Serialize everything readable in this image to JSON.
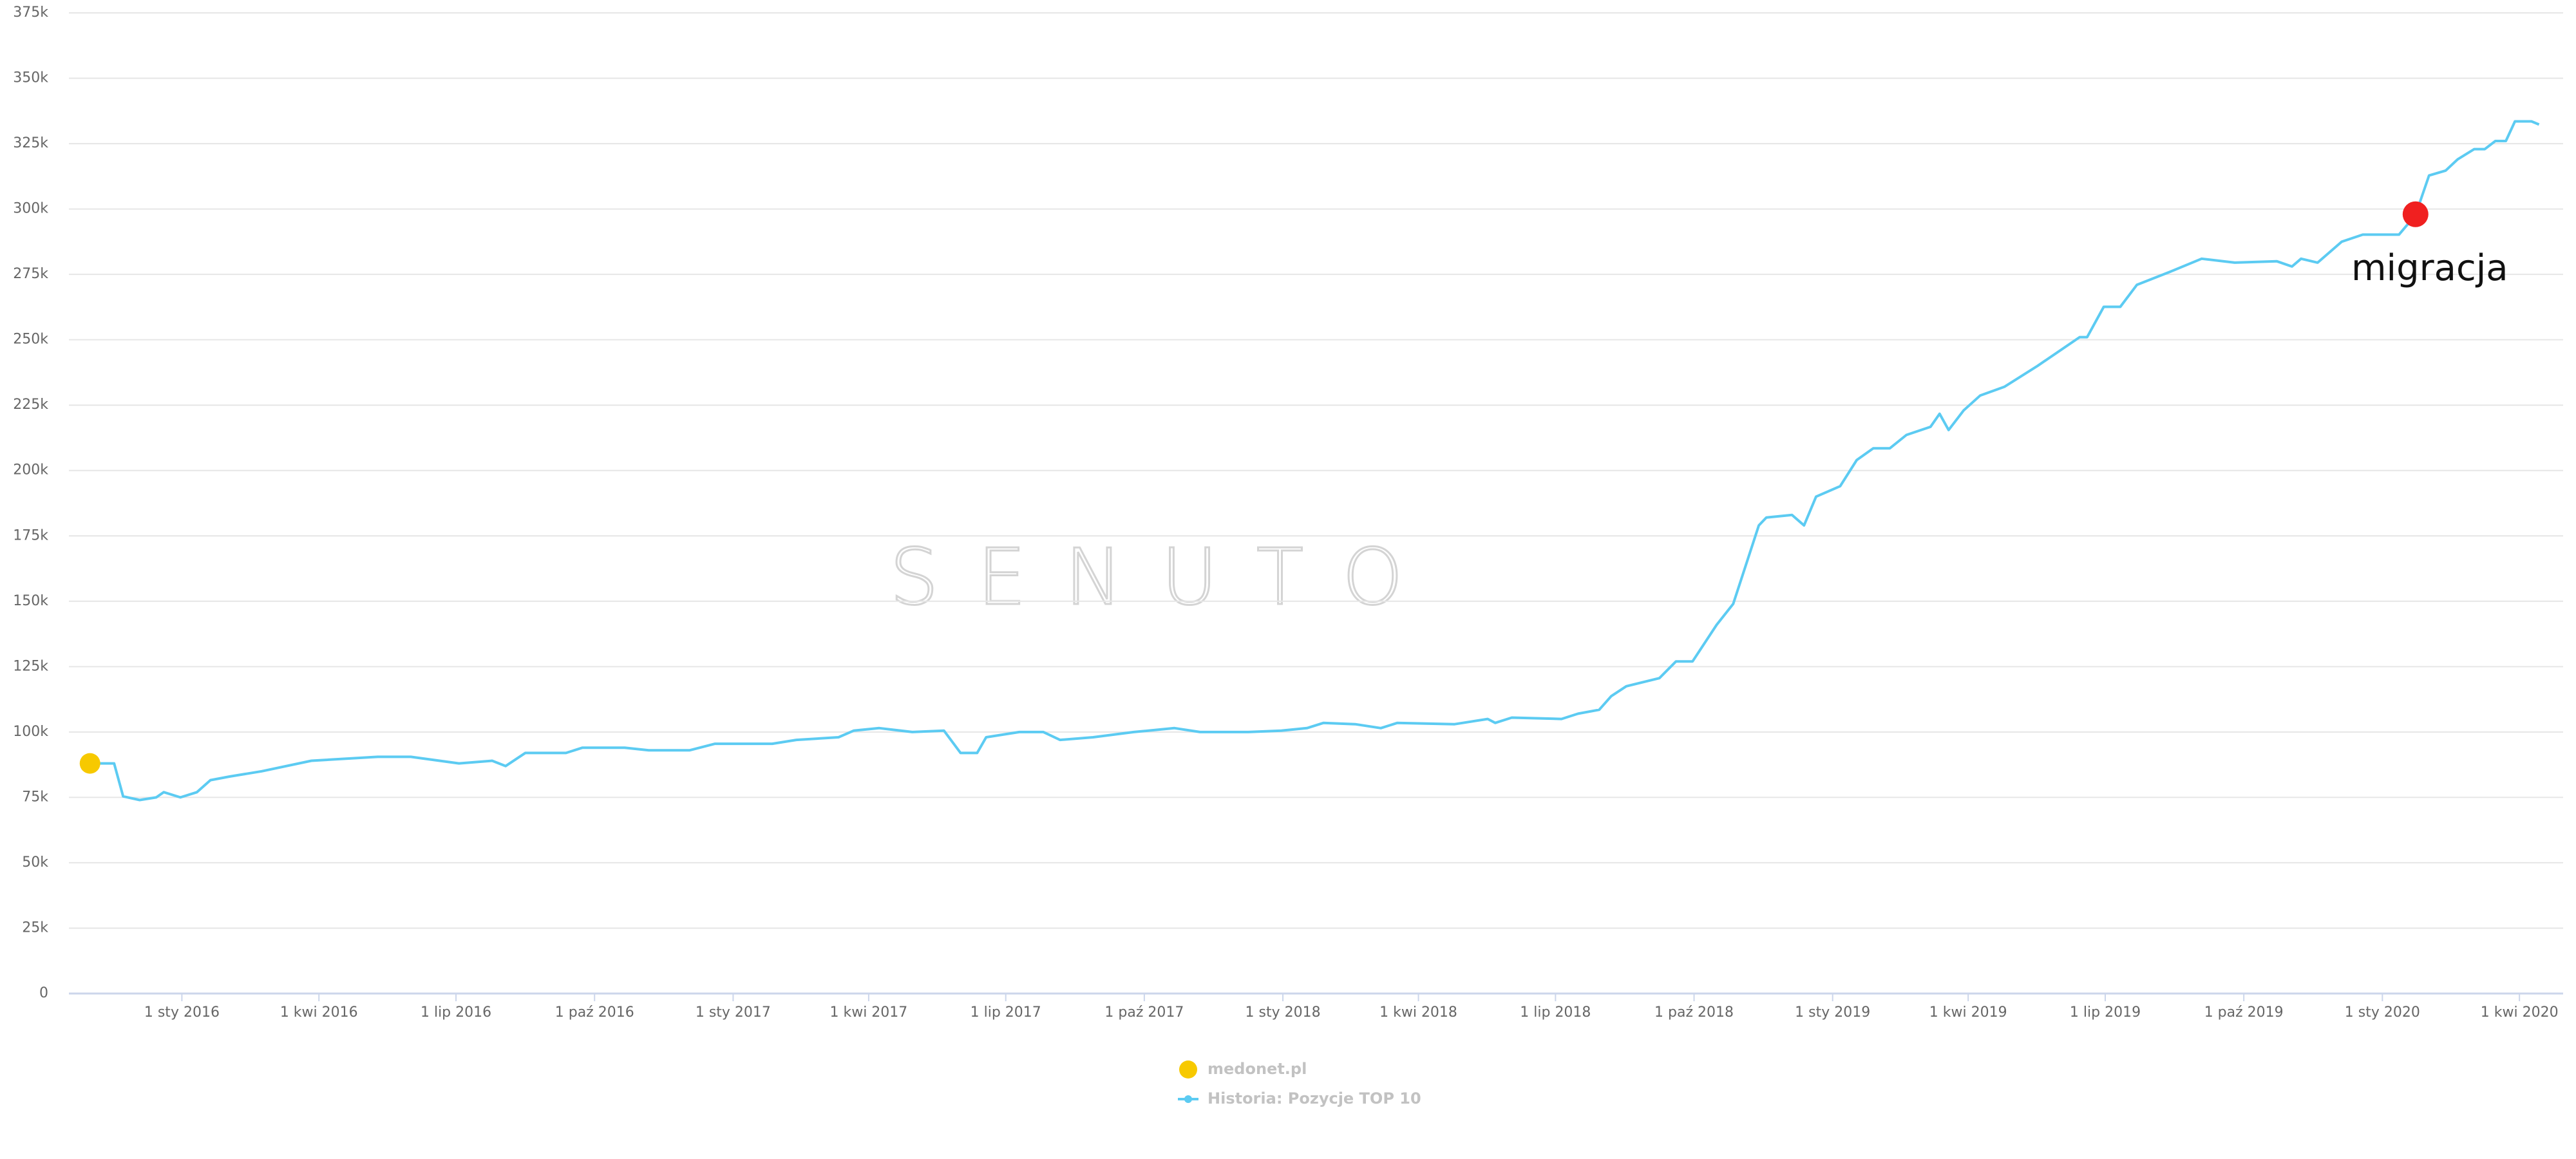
{
  "chart_data": {
    "type": "line",
    "ylim": [
      0,
      375000
    ],
    "yticks": [
      0,
      {
        "value": 25000,
        "label": "25k"
      },
      {
        "value": 50000,
        "label": "50k"
      },
      {
        "value": 75000,
        "label": "75k"
      },
      {
        "value": 100000,
        "label": "100k"
      },
      {
        "value": 125000,
        "label": "125k"
      },
      {
        "value": 150000,
        "label": "150k"
      },
      {
        "value": 175000,
        "label": "175k"
      },
      {
        "value": 200000,
        "label": "200k"
      },
      {
        "value": 225000,
        "label": "225k"
      },
      {
        "value": 250000,
        "label": "250k"
      },
      {
        "value": 275000,
        "label": "275k"
      },
      {
        "value": 300000,
        "label": "300k"
      },
      {
        "value": 325000,
        "label": "325k"
      },
      {
        "value": 350000,
        "label": "350k"
      },
      {
        "value": 375000,
        "label": "375k"
      }
    ],
    "xlim": [
      "2015-10-18",
      "2020-04-30"
    ],
    "xticks": [
      {
        "value": "2016-01-01",
        "label": "1 sty 2016"
      },
      {
        "value": "2016-04-01",
        "label": "1 kwi 2016"
      },
      {
        "value": "2016-07-01",
        "label": "1 lip 2016"
      },
      {
        "value": "2016-10-01",
        "label": "1 paź 2016"
      },
      {
        "value": "2017-01-01",
        "label": "1 sty 2017"
      },
      {
        "value": "2017-04-01",
        "label": "1 kwi 2017"
      },
      {
        "value": "2017-07-01",
        "label": "1 lip 2017"
      },
      {
        "value": "2017-10-01",
        "label": "1 paź 2017"
      },
      {
        "value": "2018-01-01",
        "label": "1 sty 2018"
      },
      {
        "value": "2018-04-01",
        "label": "1 kwi 2018"
      },
      {
        "value": "2018-07-01",
        "label": "1 lip 2018"
      },
      {
        "value": "2018-10-01",
        "label": "1 paź 2018"
      },
      {
        "value": "2019-01-01",
        "label": "1 sty 2019"
      },
      {
        "value": "2019-04-01",
        "label": "1 kwi 2019"
      },
      {
        "value": "2019-07-01",
        "label": "1 lip 2019"
      },
      {
        "value": "2019-10-01",
        "label": "1 paź 2019"
      },
      {
        "value": "2020-01-01",
        "label": "1 sty 2020"
      },
      {
        "value": "2020-04-01",
        "label": "1 kwi 2020"
      }
    ],
    "grid": true,
    "watermark": "SENUTO",
    "series": [
      {
        "name": "medonet.pl",
        "color": "#f7c900",
        "marker": "point",
        "x": [
          "2015-11-01"
        ],
        "values": [
          88000
        ]
      },
      {
        "name": "Historia: Pozycje TOP 10",
        "color": "#5ccbf2",
        "marker": "line",
        "x": [
          "2015-11-01",
          "2015-11-17",
          "2015-11-23",
          "2015-12-04",
          "2015-12-15",
          "2015-12-20",
          "2015-12-31",
          "2016-01-11",
          "2016-01-20",
          "2016-02-02",
          "2016-02-23",
          "2016-03-27",
          "2016-05-10",
          "2016-06-01",
          "2016-07-03",
          "2016-07-25",
          "2016-08-03",
          "2016-08-16",
          "2016-09-12",
          "2016-09-23",
          "2016-10-21",
          "2016-11-06",
          "2016-12-03",
          "2016-12-20",
          "2017-01-27",
          "2017-02-12",
          "2017-03-12",
          "2017-03-22",
          "2017-04-08",
          "2017-04-30",
          "2017-05-21",
          "2017-06-01",
          "2017-06-12",
          "2017-06-18",
          "2017-07-10",
          "2017-07-26",
          "2017-08-06",
          "2017-08-28",
          "2017-09-24",
          "2017-10-21",
          "2017-11-07",
          "2017-12-09",
          "2017-12-31",
          "2018-01-17",
          "2018-01-28",
          "2018-02-18",
          "2018-03-07",
          "2018-03-18",
          "2018-04-25",
          "2018-05-17",
          "2018-05-22",
          "2018-06-02",
          "2018-07-05",
          "2018-07-16",
          "2018-07-30",
          "2018-08-07",
          "2018-08-17",
          "2018-09-08",
          "2018-09-19",
          "2018-09-30",
          "2018-10-16",
          "2018-10-27",
          "2018-11-13",
          "2018-11-18",
          "2018-12-05",
          "2018-12-13",
          "2018-12-21",
          "2019-01-06",
          "2019-01-17",
          "2019-01-28",
          "2019-02-08",
          "2019-02-19",
          "2019-03-07",
          "2019-03-13",
          "2019-03-19",
          "2019-03-29",
          "2019-04-09",
          "2019-04-25",
          "2019-05-17",
          "2019-06-14",
          "2019-06-19",
          "2019-06-30",
          "2019-07-11",
          "2019-07-22",
          "2019-08-13",
          "2019-09-03",
          "2019-09-25",
          "2019-10-23",
          "2019-11-02",
          "2019-11-08",
          "2019-11-19",
          "2019-12-05",
          "2019-12-19",
          "2020-01-12",
          "2020-01-23",
          "2020-02-01",
          "2020-02-12",
          "2020-02-20",
          "2020-03-02",
          "2020-03-09",
          "2020-03-16",
          "2020-03-23",
          "2020-03-29",
          "2020-04-09",
          "2020-04-14"
        ],
        "values": [
          88000,
          88000,
          75400,
          74000,
          75000,
          77000,
          75000,
          77000,
          81600,
          83000,
          85000,
          89000,
          90500,
          90500,
          88000,
          89000,
          87000,
          92000,
          92000,
          94000,
          94000,
          93000,
          93000,
          95500,
          95500,
          97000,
          98000,
          100500,
          101500,
          100000,
          100500,
          92000,
          92000,
          98000,
          100000,
          100000,
          97000,
          98000,
          100000,
          101500,
          100000,
          100000,
          100500,
          101500,
          103500,
          103000,
          101500,
          103500,
          103000,
          105000,
          103500,
          105500,
          105000,
          107000,
          108500,
          113700,
          117500,
          120600,
          127000,
          127000,
          141000,
          149000,
          179000,
          182000,
          183000,
          179000,
          190000,
          194000,
          204000,
          208500,
          208500,
          213600,
          216700,
          221700,
          215500,
          223000,
          228700,
          232000,
          240000,
          251000,
          251000,
          262600,
          262600,
          271000,
          276000,
          281000,
          279500,
          280000,
          278000,
          281000,
          279500,
          287500,
          290200,
          290200,
          297700,
          312800,
          314700,
          319000,
          322900,
          322900,
          326000,
          326000,
          333500,
          333500,
          332300
        ]
      }
    ],
    "annotations": [
      {
        "text": "migracja",
        "x": "2020-01-23",
        "value": 298000,
        "color": "#f02020"
      }
    ]
  }
}
